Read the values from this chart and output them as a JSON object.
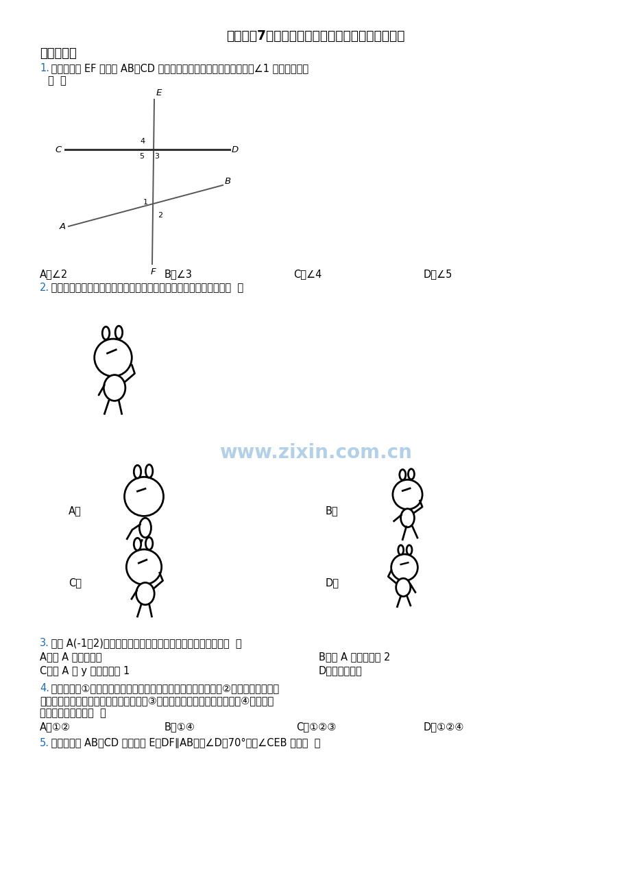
{
  "title": "人教版七7年级下册数学期末质量检测卷（含解析）",
  "section1": "一、选择题",
  "q1_num": "1.",
  "q1_body": " 如图，直线 EF 与直线 AB，CD 相交．图中所示的各个角中，能看做∠1 的内错角的是",
  "q1_paren": "（  ）",
  "q1_opts": [
    "A．∠2",
    "B．∠3",
    "C．∠4",
    "D．∠5"
  ],
  "q2_num": "2.",
  "q2_body": " 如图为一只小兔，将图进行平移，得到的图形可能是下列选项中的（  ）",
  "q3_num": "3.",
  "q3_body": " 已知 A(-1，2)为平面直角坐标系中一点，下列说法正确的是（  ）",
  "q3_opts_left": [
    "A．点 A 在第一象限",
    "C．点 A 到 y 轴的距离是 1"
  ],
  "q3_opts_right": [
    "B．点 A 的横坐标是 2",
    "D．以上都不对"
  ],
  "q4_num": "4.",
  "q4_line1": " 下列命题：①过直线外一点有且只有一条直线与已知直线平行；②在同一平面内，过",
  "q4_line2": "一点有且只有一条直线与已知直线垂直；③图形平移的方向一定是水平的；④内错角相",
  "q4_line3": "等．其中真命题为（  ）",
  "q4_opts": [
    "A．①②",
    "B．①④",
    "C．①②③",
    "D．①②④"
  ],
  "q5_num": "5.",
  "q5_body": " 如图，直线 AB、CD 相交于点 E，DF∥AB．若∠D＝70°，则∠CEB 等于（  ）",
  "bg_color": "#ffffff",
  "title_color": "#000000",
  "section_color": "#000000",
  "number_color": "#1a6bbf",
  "text_color": "#000000",
  "watermark_text": "www.zixin.com.cn",
  "watermark_color": "#5599cc"
}
